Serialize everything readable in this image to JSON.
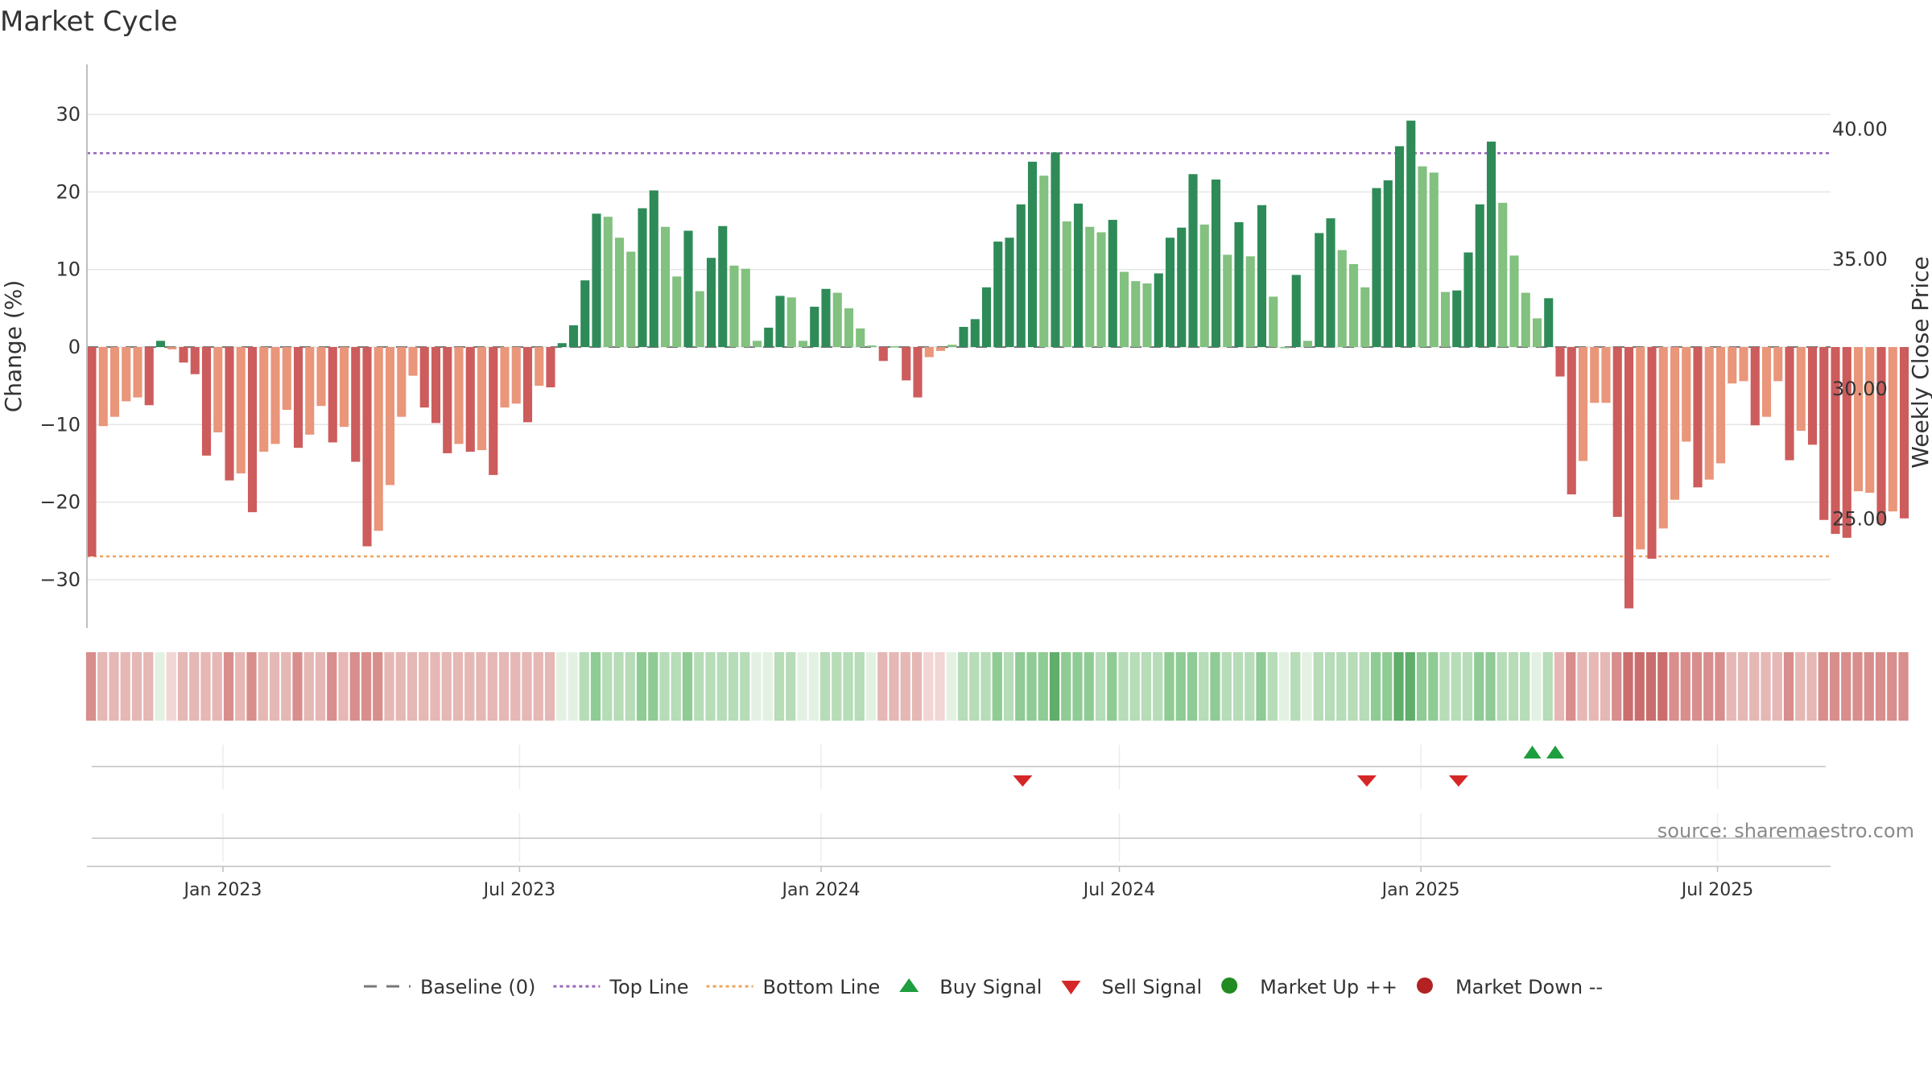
{
  "chart_data": {
    "type": "bar",
    "title": "Market Cycle",
    "ylabel_left": "Change (%)",
    "ylabel_right": "Weekly Close Price",
    "ylim": [
      -36.5,
      36.5
    ],
    "yticks": [
      30,
      20,
      10,
      0,
      -10,
      -20,
      -30
    ],
    "ytick_labels": [
      "30",
      "20",
      "10",
      "0",
      "−10",
      "−20",
      "−30"
    ],
    "right_ylim": [
      20.8,
      42.5
    ],
    "right_yticks": [
      40,
      35,
      30,
      25
    ],
    "right_ytick_labels": [
      "40.00",
      "35.00",
      "30.00",
      "25.00"
    ],
    "x_range": [
      "2022-10-10",
      "2025-09-08"
    ],
    "xticks": [
      "2023-01-01",
      "2023-07-01",
      "2024-01-01",
      "2024-07-01",
      "2025-01-01",
      "2025-07-01"
    ],
    "xtick_labels": [
      "Jan 2023",
      "Jul 2023",
      "Jan 2024",
      "Jul 2024",
      "Jan 2025",
      "Jul 2025"
    ],
    "first_week": "2022-10-10",
    "top_line": 25,
    "bottom_line": -27,
    "grid": true,
    "legend_position": "bottom-center",
    "colors": {
      "strong_up": "#2e8b57",
      "mild_up": "#82c17f",
      "strong_down": "#cd5c5c",
      "mild_down": "#e9967a",
      "top_line": "#9966bb",
      "bottom_line": "#f0a35e",
      "baseline": "#777777",
      "buy": "#1e9e3e",
      "sell": "#d62728",
      "market_up": "#228b22",
      "market_down": "#b22222",
      "grid": "#e6e6e6"
    },
    "series": [
      {
        "name": "Change",
        "values": [
          -27,
          -10.2,
          -9,
          -7,
          -6.5,
          -7.5,
          0.8,
          -0.3,
          -2,
          -3.5,
          -14,
          -11,
          -17.2,
          -16.3,
          -21.3,
          -13.5,
          -12.5,
          -8.1,
          -13,
          -11.3,
          -7.6,
          -12.3,
          -10.3,
          -14.8,
          -25.7,
          -23.7,
          -17.8,
          -9,
          -3.7,
          -7.8,
          -9.8,
          -13.7,
          -12.5,
          -13.5,
          -13.3,
          -16.5,
          -7.8,
          -7.3,
          -9.7,
          -5,
          -5.2,
          0.5,
          2.8,
          8.6,
          17.2,
          16.8,
          14.1,
          12.3,
          17.9,
          20.2,
          15.5,
          9.1,
          15,
          7.2,
          11.5,
          15.6,
          10.5,
          10.1,
          0.8,
          2.5,
          6.6,
          6.4,
          0.8,
          5.2,
          7.5,
          7,
          5,
          2.4,
          0.2,
          -1.8,
          0.1,
          -4.3,
          -6.5,
          -1.3,
          -0.5,
          0.3,
          2.6,
          3.6,
          7.7,
          13.6,
          14.1,
          18.4,
          23.9,
          22.1,
          25.1,
          16.2,
          18.5,
          15.5,
          14.8,
          16.4,
          9.7,
          8.5,
          8.2,
          9.5,
          14.1,
          15.4,
          22.3,
          15.8,
          21.6,
          11.9,
          16.1,
          11.7,
          18.3,
          6.5,
          0,
          9.3,
          0.8,
          14.7,
          16.6,
          12.5,
          10.7,
          7.7,
          20.5,
          21.5,
          25.9,
          29.2,
          23.3,
          22.5,
          7.1,
          7.3,
          12.2,
          18.4,
          26.5,
          18.6,
          11.8,
          7,
          3.7,
          6.3,
          -3.8,
          -19,
          -14.7,
          -7.2,
          -7.2,
          -21.9,
          -33.7,
          -26.1,
          -27.3,
          -23.4,
          -19.7,
          -12.2,
          -18.1,
          -17.1,
          -15,
          -4.7,
          -4.4,
          -10.1,
          -9,
          -4.4,
          -14.6,
          -10.8,
          -12.6,
          -22.3,
          -24.1,
          -24.6,
          -18.6,
          -18.8,
          -22.8,
          -21.2,
          -22.1
        ],
        "strength": [
          2,
          1,
          1,
          1,
          1,
          2,
          2,
          1,
          2,
          2,
          2,
          1,
          2,
          1,
          2,
          1,
          1,
          1,
          2,
          1,
          1,
          2,
          1,
          2,
          2,
          1,
          1,
          1,
          1,
          2,
          2,
          2,
          1,
          2,
          1,
          2,
          1,
          1,
          2,
          1,
          2,
          2,
          2,
          2,
          2,
          1,
          1,
          1,
          2,
          2,
          1,
          1,
          2,
          1,
          2,
          2,
          1,
          1,
          1,
          2,
          2,
          1,
          1,
          2,
          2,
          1,
          1,
          1,
          1,
          2,
          1,
          2,
          2,
          1,
          1,
          1,
          2,
          2,
          2,
          2,
          2,
          2,
          2,
          1,
          2,
          1,
          2,
          1,
          1,
          2,
          1,
          1,
          1,
          2,
          2,
          2,
          2,
          1,
          2,
          1,
          2,
          1,
          2,
          1,
          1,
          2,
          1,
          2,
          2,
          1,
          1,
          1,
          2,
          2,
          2,
          2,
          1,
          1,
          1,
          2,
          2,
          2,
          2,
          1,
          1,
          1,
          1,
          2,
          2,
          2,
          1,
          1,
          1,
          2,
          2,
          1,
          2,
          1,
          1,
          1,
          2,
          1,
          1,
          1,
          1,
          2,
          1,
          1,
          2,
          1,
          2,
          2,
          2,
          2,
          1,
          1,
          2,
          1,
          2
        ]
      }
    ],
    "band": {
      "state": [
        -3,
        -2,
        -2,
        -2,
        -2,
        -2,
        1,
        -1,
        -2,
        -2,
        -2,
        -2,
        -3,
        -2,
        -3,
        -2,
        -2,
        -2,
        -3,
        -2,
        -2,
        -3,
        -2,
        -3,
        -3,
        -3,
        -2,
        -2,
        -2,
        -2,
        -2,
        -2,
        -2,
        -2,
        -2,
        -2,
        -2,
        -2,
        -2,
        -2,
        -2,
        1,
        1,
        2,
        3,
        2,
        2,
        2,
        3,
        3,
        2,
        2,
        3,
        2,
        2,
        2,
        2,
        2,
        1,
        1,
        2,
        2,
        1,
        1,
        2,
        2,
        2,
        2,
        1,
        -2,
        -2,
        -2,
        -2,
        -1,
        -1,
        1,
        2,
        2,
        2,
        3,
        2,
        3,
        3,
        3,
        4,
        3,
        3,
        3,
        2,
        3,
        2,
        2,
        2,
        2,
        3,
        3,
        3,
        2,
        3,
        2,
        2,
        2,
        3,
        2,
        1,
        2,
        1,
        2,
        2,
        2,
        2,
        2,
        3,
        3,
        4,
        4,
        3,
        3,
        2,
        2,
        2,
        3,
        3,
        2,
        2,
        2,
        1,
        2,
        -2,
        -3,
        -2,
        -2,
        -2,
        -3,
        -4,
        -4,
        -4,
        -4,
        -3,
        -3,
        -3,
        -3,
        -3,
        -2,
        -2,
        -2,
        -2,
        -2,
        -3,
        -2,
        -2,
        -3,
        -3,
        -3,
        -3,
        -3,
        -3,
        -3,
        -3
      ],
      "up_colors": [
        "#e3f1e3",
        "#b6dcb8",
        "#8fcb94",
        "#5fae6a"
      ],
      "down_colors": [
        "#f2d5d5",
        "#e5b7b5",
        "#d88e8c",
        "#c96e6c"
      ]
    },
    "buy_signals": [
      "2025-03-10",
      "2025-03-24"
    ],
    "sell_signals": [
      "2024-05-03",
      "2024-11-29",
      "2025-01-24"
    ],
    "legend": [
      {
        "label": "Baseline (0)",
        "kind": "dash",
        "color": "#777777"
      },
      {
        "label": "Top Line",
        "kind": "dot",
        "color": "#9966bb"
      },
      {
        "label": "Bottom Line",
        "kind": "dot",
        "color": "#f0a35e"
      },
      {
        "label": "Buy Signal",
        "kind": "tri-up",
        "color": "#1e9e3e"
      },
      {
        "label": "Sell Signal",
        "kind": "tri-down",
        "color": "#d62728"
      },
      {
        "label": "Market Up ++",
        "kind": "circle",
        "color": "#228b22"
      },
      {
        "label": "Market Down --",
        "kind": "circle",
        "color": "#b22222"
      }
    ],
    "annotation": "source: sharemaestro.com"
  }
}
